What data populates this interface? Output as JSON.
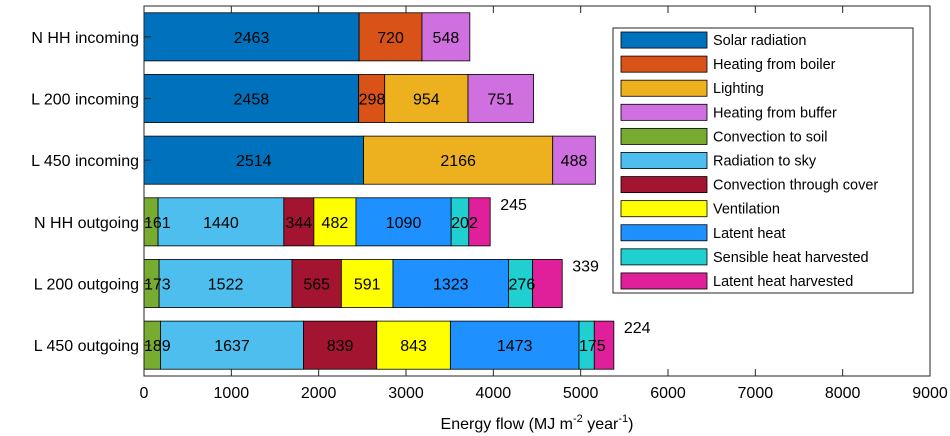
{
  "chart_data": {
    "type": "bar",
    "orientation": "horizontal",
    "stacked": true,
    "title": "",
    "xlabel": "Energy flow (MJ m-2 year-1)",
    "xlabel_parts": {
      "base": "Energy flow (MJ m",
      "sup1": "-2",
      "mid": " year",
      "sup2": "-1",
      "end": ")"
    },
    "ylabel": "",
    "xlim": [
      0,
      9000
    ],
    "xticks": [
      0,
      1000,
      2000,
      3000,
      4000,
      5000,
      6000,
      7000,
      8000,
      9000
    ],
    "grid": false,
    "legend_position": "top-right",
    "categories": [
      "N HH incoming",
      "L 200 incoming",
      "L 450 incoming",
      "N HH outgoing",
      "L 200 outgoing",
      "L 450 outgoing"
    ],
    "series": [
      {
        "name": "Solar radiation",
        "color": "#0072BD",
        "values": [
          2463,
          2458,
          2514,
          0,
          0,
          0
        ]
      },
      {
        "name": "Heating from boiler",
        "color": "#D95319",
        "values": [
          720,
          298,
          0,
          0,
          0,
          0
        ]
      },
      {
        "name": "Lighting",
        "color": "#EDB120",
        "values": [
          0,
          954,
          2166,
          0,
          0,
          0
        ]
      },
      {
        "name": "Heating from buffer",
        "color": "#D070E0",
        "values": [
          548,
          751,
          488,
          0,
          0,
          0
        ]
      },
      {
        "name": "Convection to soil",
        "color": "#77AC30",
        "values": [
          0,
          0,
          0,
          161,
          173,
          189
        ]
      },
      {
        "name": "Radiation to sky",
        "color": "#4DBEEE",
        "values": [
          0,
          0,
          0,
          1440,
          1522,
          1637
        ]
      },
      {
        "name": "Convection through cover",
        "color": "#A2142F",
        "values": [
          0,
          0,
          0,
          344,
          565,
          839
        ]
      },
      {
        "name": "Ventilation",
        "color": "#FFFF00",
        "values": [
          0,
          0,
          0,
          482,
          591,
          843
        ]
      },
      {
        "name": "Latent heat",
        "color": "#1E90FF",
        "values": [
          0,
          0,
          0,
          1090,
          1323,
          1473
        ]
      },
      {
        "name": "Sensible heat harvested",
        "color": "#20D0D0",
        "values": [
          0,
          0,
          0,
          202,
          276,
          175
        ]
      },
      {
        "name": "Latent heat harvested",
        "color": "#E0209A",
        "values": [
          0,
          0,
          0,
          245,
          339,
          224
        ]
      }
    ]
  }
}
